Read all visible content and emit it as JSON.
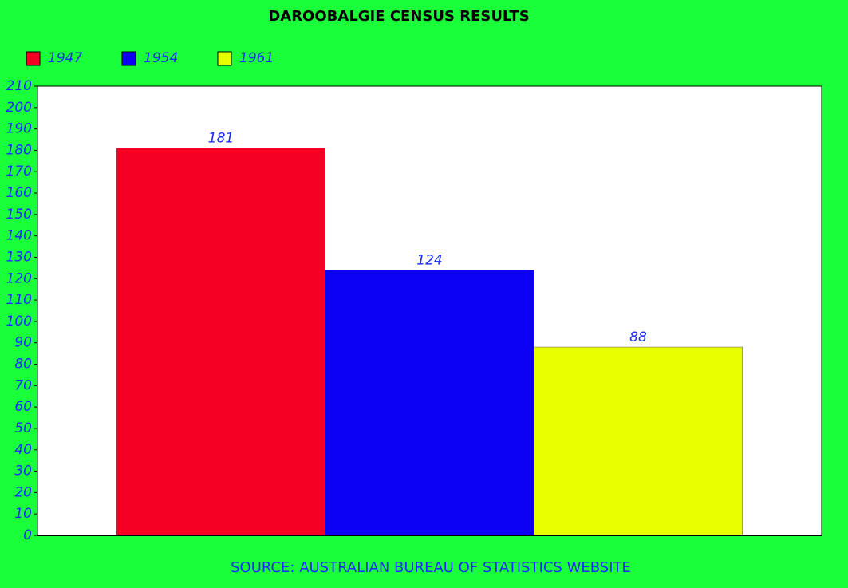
{
  "chart_data": {
    "type": "bar",
    "title": "DAROOBALGIE CENSUS RESULTS",
    "source": "SOURCE: AUSTRALIAN BUREAU OF STATISTICS WEBSITE",
    "categories": [
      null
    ],
    "series": [
      {
        "name": "1947",
        "color": "#f50022",
        "values": [
          181
        ]
      },
      {
        "name": "1954",
        "color": "#0c00f5",
        "values": [
          124
        ]
      },
      {
        "name": "1961",
        "color": "#e8ff00",
        "values": [
          88
        ]
      }
    ],
    "ylim": [
      0,
      210
    ],
    "yticks": [
      0,
      10,
      20,
      30,
      40,
      50,
      60,
      70,
      80,
      90,
      100,
      110,
      120,
      130,
      140,
      150,
      160,
      170,
      180,
      190,
      200,
      210
    ],
    "grid": false,
    "legend": "top-left"
  }
}
